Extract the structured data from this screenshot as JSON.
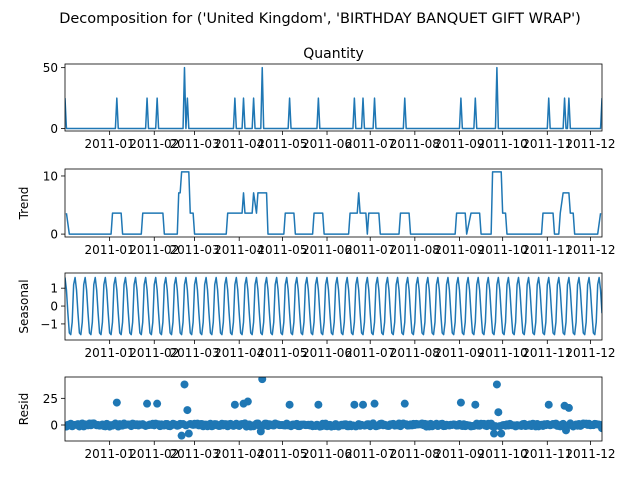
{
  "suptitle": "Decomposition for ('United Kingdom', 'BIRTHDAY BANQUET GIFT WRAP')",
  "x_tick_labels": [
    "2011-01",
    "2011-02",
    "2011-03",
    "2011-04",
    "2011-05",
    "2011-06",
    "2011-07",
    "2011-08",
    "2011-09",
    "2011-10",
    "2011-11",
    "2011-12"
  ],
  "line_color": "#1f77b4",
  "chart_data": [
    {
      "id": "observed",
      "type": "line",
      "title": "Quantity",
      "ylabel": "",
      "x_range": [
        "2010-12-01",
        "2011-12-09"
      ],
      "ylim": [
        -2,
        53
      ],
      "yticks": [
        0,
        50
      ],
      "baseline": 0,
      "series": [
        {
          "values": [
            {
              "x": "2010-12-01",
              "y": 25
            },
            {
              "x": "2011-01-06",
              "y": 25
            },
            {
              "x": "2011-01-27",
              "y": 25
            },
            {
              "x": "2011-02-03",
              "y": 25
            },
            {
              "x": "2011-02-22",
              "y": 50
            },
            {
              "x": "2011-02-24",
              "y": 25
            },
            {
              "x": "2011-03-29",
              "y": 25
            },
            {
              "x": "2011-04-04",
              "y": 25
            },
            {
              "x": "2011-04-11",
              "y": 25
            },
            {
              "x": "2011-04-17",
              "y": 50
            },
            {
              "x": "2011-05-06",
              "y": 25
            },
            {
              "x": "2011-05-26",
              "y": 25
            },
            {
              "x": "2011-06-20",
              "y": 25
            },
            {
              "x": "2011-06-26",
              "y": 25
            },
            {
              "x": "2011-07-04",
              "y": 25
            },
            {
              "x": "2011-07-25",
              "y": 25
            },
            {
              "x": "2011-09-02",
              "y": 25
            },
            {
              "x": "2011-09-12",
              "y": 25
            },
            {
              "x": "2011-09-27",
              "y": 50
            },
            {
              "x": "2011-11-02",
              "y": 25
            },
            {
              "x": "2011-11-13",
              "y": 25
            },
            {
              "x": "2011-11-16",
              "y": 25
            },
            {
              "x": "2011-12-09",
              "y": 25
            }
          ]
        }
      ]
    },
    {
      "id": "trend",
      "type": "line",
      "title": "",
      "ylabel": "Trend",
      "x_range": [
        "2010-12-01",
        "2011-12-09"
      ],
      "ylim": [
        -0.5,
        11.2
      ],
      "yticks": [
        0,
        10
      ],
      "series": [
        {
          "points": [
            [
              "2010-12-02",
              3.6
            ],
            [
              "2010-12-04",
              0
            ],
            [
              "2011-01-02",
              0
            ],
            [
              "2011-01-03",
              3.6
            ],
            [
              "2011-01-09",
              3.6
            ],
            [
              "2011-01-10",
              0
            ],
            [
              "2011-01-23",
              0
            ],
            [
              "2011-01-24",
              3.6
            ],
            [
              "2011-02-07",
              3.6
            ],
            [
              "2011-02-08",
              0
            ],
            [
              "2011-02-17",
              0
            ],
            [
              "2011-02-18",
              7.1
            ],
            [
              "2011-02-19",
              7.1
            ],
            [
              "2011-02-20",
              10.7
            ],
            [
              "2011-02-25",
              10.7
            ],
            [
              "2011-02-26",
              3.6
            ],
            [
              "2011-02-28",
              3.6
            ],
            [
              "2011-03-01",
              0
            ],
            [
              "2011-03-23",
              0
            ],
            [
              "2011-03-24",
              3.6
            ],
            [
              "2011-04-03",
              3.6
            ],
            [
              "2011-04-04",
              7.1
            ],
            [
              "2011-04-05",
              3.6
            ],
            [
              "2011-04-10",
              3.6
            ],
            [
              "2011-04-11",
              7.1
            ],
            [
              "2011-04-13",
              3.6
            ],
            [
              "2011-04-14",
              7.1
            ],
            [
              "2011-04-20",
              7.1
            ],
            [
              "2011-04-21",
              0
            ],
            [
              "2011-05-02",
              0
            ],
            [
              "2011-05-03",
              3.6
            ],
            [
              "2011-05-09",
              3.6
            ],
            [
              "2011-05-10",
              0
            ],
            [
              "2011-05-22",
              0
            ],
            [
              "2011-05-23",
              3.6
            ],
            [
              "2011-05-29",
              3.6
            ],
            [
              "2011-05-30",
              0
            ],
            [
              "2011-06-16",
              0
            ],
            [
              "2011-06-17",
              3.6
            ],
            [
              "2011-06-22",
              3.6
            ],
            [
              "2011-06-23",
              7.1
            ],
            [
              "2011-06-24",
              3.6
            ],
            [
              "2011-06-28",
              3.6
            ],
            [
              "2011-06-29",
              0
            ],
            [
              "2011-06-30",
              3.6
            ],
            [
              "2011-07-07",
              3.6
            ],
            [
              "2011-07-08",
              0
            ],
            [
              "2011-07-21",
              0
            ],
            [
              "2011-07-22",
              3.6
            ],
            [
              "2011-07-28",
              3.6
            ],
            [
              "2011-07-29",
              0
            ],
            [
              "2011-08-29",
              0
            ],
            [
              "2011-08-30",
              3.6
            ],
            [
              "2011-09-05",
              3.6
            ],
            [
              "2011-09-06",
              0
            ],
            [
              "2011-09-09",
              3.6
            ],
            [
              "2011-09-15",
              3.6
            ],
            [
              "2011-09-16",
              0
            ],
            [
              "2011-09-23",
              0
            ],
            [
              "2011-09-24",
              10.7
            ],
            [
              "2011-09-30",
              10.7
            ],
            [
              "2011-10-01",
              3.6
            ],
            [
              "2011-10-03",
              3.6
            ],
            [
              "2011-10-04",
              0
            ],
            [
              "2011-10-28",
              0
            ],
            [
              "2011-10-29",
              3.6
            ],
            [
              "2011-11-05",
              3.6
            ],
            [
              "2011-11-06",
              0
            ],
            [
              "2011-11-09",
              0
            ],
            [
              "2011-11-10",
              3.6
            ],
            [
              "2011-11-12",
              7.1
            ],
            [
              "2011-11-16",
              7.1
            ],
            [
              "2011-11-17",
              3.6
            ],
            [
              "2011-11-19",
              3.6
            ],
            [
              "2011-11-20",
              0
            ],
            [
              "2011-12-06",
              0
            ],
            [
              "2011-12-08",
              3.6
            ]
          ]
        }
      ]
    },
    {
      "id": "seasonal",
      "type": "line",
      "title": "",
      "ylabel": "Seasonal",
      "x_range": [
        "2010-12-01",
        "2011-12-09"
      ],
      "ylim": [
        -1.9,
        1.85
      ],
      "yticks": [
        -1,
        0,
        1
      ],
      "period_days": 7,
      "weekly_pattern": [
        1.6,
        0.9,
        -0.4,
        -1.5,
        -1.6,
        -0.9,
        1.2
      ]
    },
    {
      "id": "resid",
      "type": "scatter",
      "title": "",
      "ylabel": "Resid",
      "x_range": [
        "2010-12-01",
        "2011-12-09"
      ],
      "ylim": [
        -15,
        45
      ],
      "yticks": [
        0,
        25
      ],
      "noise": [
        -1.5,
        1.5
      ],
      "series": [
        {
          "points": [
            [
              "2011-01-06",
              21
            ],
            [
              "2011-01-27",
              20
            ],
            [
              "2011-02-03",
              20
            ],
            [
              "2011-02-22",
              38
            ],
            [
              "2011-02-24",
              14
            ],
            [
              "2011-02-20",
              -10
            ],
            [
              "2011-02-25",
              -8
            ],
            [
              "2011-03-29",
              19
            ],
            [
              "2011-04-04",
              20
            ],
            [
              "2011-04-07",
              22
            ],
            [
              "2011-04-17",
              43
            ],
            [
              "2011-04-16",
              -6
            ],
            [
              "2011-05-06",
              19
            ],
            [
              "2011-05-26",
              19
            ],
            [
              "2011-06-20",
              19
            ],
            [
              "2011-06-26",
              19
            ],
            [
              "2011-07-04",
              20
            ],
            [
              "2011-07-25",
              20
            ],
            [
              "2011-09-02",
              21
            ],
            [
              "2011-09-12",
              19
            ],
            [
              "2011-09-27",
              38
            ],
            [
              "2011-09-28",
              12
            ],
            [
              "2011-09-25",
              -8
            ],
            [
              "2011-09-30",
              -8
            ],
            [
              "2011-11-02",
              19
            ],
            [
              "2011-11-13",
              18
            ],
            [
              "2011-11-16",
              16
            ],
            [
              "2011-11-14",
              -5
            ],
            [
              "2011-12-09",
              -3
            ]
          ]
        }
      ]
    }
  ]
}
